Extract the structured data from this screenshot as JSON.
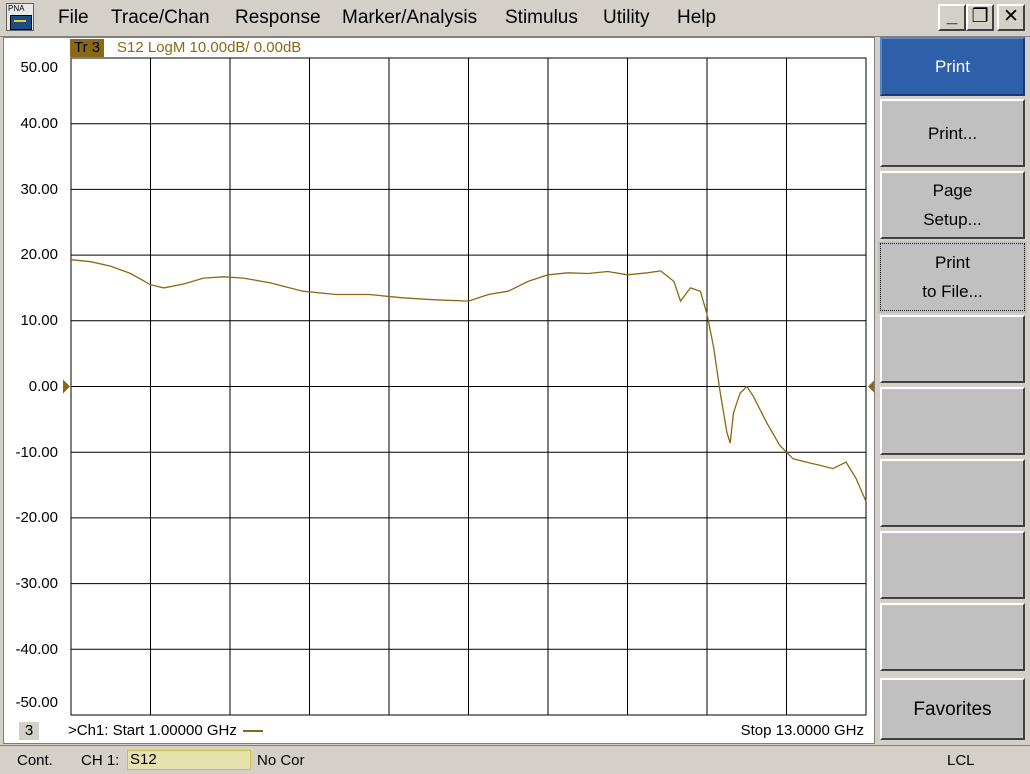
{
  "app": {
    "icon_label": "PNA"
  },
  "menu": [
    "File",
    "Trace/Chan",
    "Response",
    "Marker/Analysis",
    "Stimulus",
    "Utility",
    "Help"
  ],
  "window_controls": {
    "minimize": "_",
    "restore": "❐",
    "close": "✕"
  },
  "trace": {
    "label": "Tr 3",
    "description": "S12 LogM 10.00dB/  0.00dB",
    "color": "#8b6914"
  },
  "y_axis_labels": [
    "50.00",
    "40.00",
    "30.00",
    "20.00",
    "10.00",
    "0.00",
    "-10.00",
    "-20.00",
    "-30.00",
    "-40.00",
    "-50.00"
  ],
  "channel": {
    "number": "3",
    "start": ">Ch1: Start  1.00000 GHz",
    "stop": "Stop  13.0000 GHz"
  },
  "softkeys": [
    {
      "lines": [
        "Print"
      ]
    },
    {
      "lines": [
        "Print..."
      ]
    },
    {
      "lines": [
        "Page",
        "Setup..."
      ]
    },
    {
      "lines": [
        "Print",
        "to File..."
      ]
    },
    {
      "lines": []
    },
    {
      "lines": []
    },
    {
      "lines": []
    },
    {
      "lines": []
    },
    {
      "lines": []
    },
    {
      "lines": [
        "Favorites"
      ]
    }
  ],
  "status": {
    "mode": "Cont.",
    "channel": "CH 1:",
    "param": "S12",
    "correction": "No Cor",
    "remote": "LCL"
  },
  "chart_data": {
    "type": "line",
    "x_range": [
      1.0,
      13.0
    ],
    "ylim": [
      -50,
      50
    ],
    "grid": true,
    "reference_level": 0,
    "series": [
      {
        "name": "S12",
        "x": [
          1.0,
          1.3,
          1.6,
          1.9,
          2.2,
          2.4,
          2.7,
          3.0,
          3.3,
          3.6,
          4.0,
          4.5,
          5.0,
          5.5,
          6.0,
          6.5,
          7.0,
          7.3,
          7.6,
          7.9,
          8.2,
          8.5,
          8.8,
          9.1,
          9.4,
          9.7,
          9.9,
          10.1,
          10.2,
          10.35,
          10.5,
          10.6,
          10.7,
          10.8,
          10.9,
          10.95,
          11.0,
          11.1,
          11.2,
          11.3,
          11.5,
          11.7,
          11.9,
          12.1,
          12.3,
          12.5,
          12.7,
          12.85,
          13.0
        ],
        "y": [
          19.3,
          19.0,
          18.3,
          17.2,
          15.5,
          15.0,
          15.6,
          16.5,
          16.7,
          16.5,
          15.8,
          14.5,
          14.0,
          14.0,
          13.5,
          13.2,
          13.0,
          14.0,
          14.5,
          16.0,
          17.0,
          17.3,
          17.2,
          17.5,
          17.0,
          17.3,
          17.6,
          16.0,
          13.0,
          15.0,
          14.5,
          11.0,
          6.0,
          -1.0,
          -7.0,
          -8.6,
          -4.0,
          -1.0,
          0.0,
          -1.5,
          -5.5,
          -9.0,
          -11.0,
          -11.5,
          -12.0,
          -12.5,
          -11.5,
          -14.0,
          -17.5
        ]
      }
    ]
  }
}
